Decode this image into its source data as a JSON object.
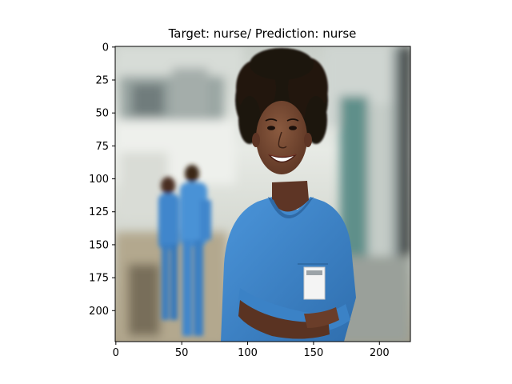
{
  "title": "Target: nurse/ Prediction: nurse",
  "image": {
    "subject": "smiling nurse in blue scrubs with arms crossed, hospital corridor background",
    "colors": {
      "scrubs": "#3f86cc",
      "scrubs_shadow": "#2e6aa8",
      "skin": "#6b3f2a",
      "hair": "#1d1410",
      "background_light": "#e9ece8",
      "background_mid": "#b9c2bd",
      "floor": "#b8ad93",
      "teal_panel": "#5f8f8a"
    }
  },
  "axes": {
    "x_ticks": [
      "0",
      "50",
      "100",
      "150",
      "200"
    ],
    "x_tick_values": [
      0,
      50,
      100,
      150,
      200
    ],
    "y_ticks": [
      "0",
      "25",
      "50",
      "75",
      "100",
      "125",
      "150",
      "175",
      "200"
    ],
    "y_tick_values": [
      0,
      25,
      50,
      75,
      100,
      125,
      150,
      175,
      200
    ],
    "xlim": [
      -0.5,
      223.5
    ],
    "ylim": [
      223.5,
      -0.5
    ]
  }
}
